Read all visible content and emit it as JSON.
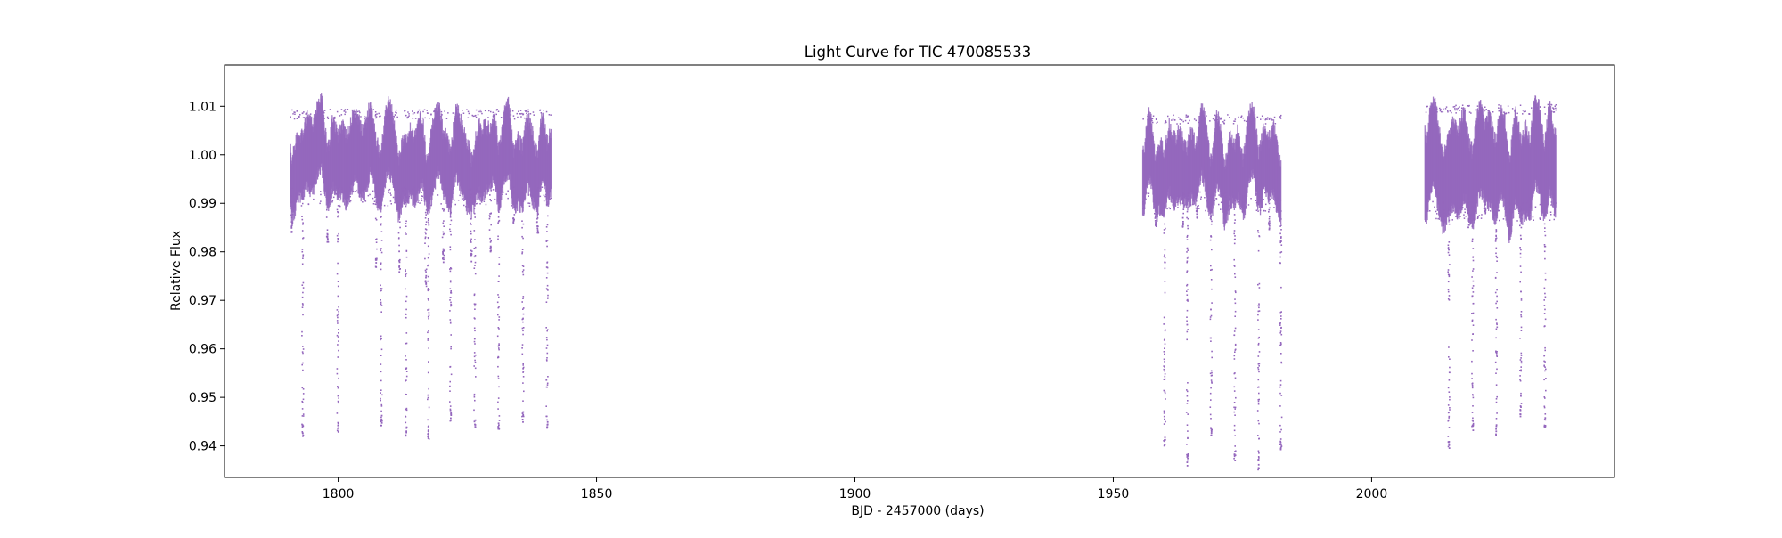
{
  "chart_data": {
    "type": "scatter",
    "title": "Light Curve for TIC 470085533",
    "xlabel": "BJD - 2457000 (days)",
    "ylabel": "Relative Flux",
    "xlim": [
      1778,
      2047
    ],
    "ylim": [
      0.9335,
      1.0185
    ],
    "xticks": [
      1800,
      1850,
      1900,
      1950,
      2000
    ],
    "yticks": [
      0.94,
      0.95,
      0.96,
      0.97,
      0.98,
      0.99,
      1.0,
      1.01
    ],
    "ytick_labels": [
      "0.94",
      "0.95",
      "0.96",
      "0.97",
      "0.98",
      "0.99",
      "1.00",
      "1.01"
    ],
    "grid": false,
    "legend": "none",
    "marker_color": "#9467bd",
    "segments": [
      {
        "x_range": [
          1790.6,
          1841.1
        ],
        "baseline_low": 0.9935,
        "baseline_high": 1.0075,
        "eclipses": [
          {
            "x": 1790.9,
            "depth_min": 0.984
          },
          {
            "x": 1793.0,
            "depth_min": 0.942
          },
          {
            "x": 1797.8,
            "depth_min": 0.982
          },
          {
            "x": 1799.8,
            "depth_min": 0.943
          },
          {
            "x": 1807.2,
            "depth_min": 0.977
          },
          {
            "x": 1808.2,
            "depth_min": 0.944
          },
          {
            "x": 1811.7,
            "depth_min": 0.976
          },
          {
            "x": 1813.0,
            "depth_min": 0.942
          },
          {
            "x": 1816.8,
            "depth_min": 0.973
          },
          {
            "x": 1817.3,
            "depth_min": 0.941
          },
          {
            "x": 1820.2,
            "depth_min": 0.978
          },
          {
            "x": 1821.6,
            "depth_min": 0.945
          },
          {
            "x": 1825.6,
            "depth_min": 0.978
          },
          {
            "x": 1826.3,
            "depth_min": 0.944
          },
          {
            "x": 1829.3,
            "depth_min": 0.98
          },
          {
            "x": 1830.9,
            "depth_min": 0.943
          },
          {
            "x": 1833.8,
            "depth_min": 0.985
          },
          {
            "x": 1835.6,
            "depth_min": 0.945
          },
          {
            "x": 1838.5,
            "depth_min": 0.984
          },
          {
            "x": 1840.3,
            "depth_min": 0.943
          }
        ]
      },
      {
        "x_range": [
          1955.6,
          1982.4
        ],
        "baseline_low": 0.9925,
        "baseline_high": 1.0065,
        "eclipses": [
          {
            "x": 1955.8,
            "depth_min": 0.989
          },
          {
            "x": 1958.0,
            "depth_min": 0.985
          },
          {
            "x": 1959.8,
            "depth_min": 0.94
          },
          {
            "x": 1963.4,
            "depth_min": 0.985
          },
          {
            "x": 1964.2,
            "depth_min": 0.936
          },
          {
            "x": 1966.0,
            "depth_min": 0.987
          },
          {
            "x": 1968.8,
            "depth_min": 0.942
          },
          {
            "x": 1971.4,
            "depth_min": 0.988
          },
          {
            "x": 1973.4,
            "depth_min": 0.937
          },
          {
            "x": 1975.0,
            "depth_min": 0.988
          },
          {
            "x": 1978.0,
            "depth_min": 0.935
          },
          {
            "x": 1980.0,
            "depth_min": 0.984
          },
          {
            "x": 1982.3,
            "depth_min": 0.939
          }
        ]
      },
      {
        "x_range": [
          2010.2,
          2035.6
        ],
        "baseline_low": 0.9905,
        "baseline_high": 1.0085,
        "eclipses": [
          {
            "x": 2010.6,
            "depth_min": 0.991
          },
          {
            "x": 2013.8,
            "depth_min": 0.985
          },
          {
            "x": 2014.8,
            "depth_min": 0.939
          },
          {
            "x": 2018.6,
            "depth_min": 0.985
          },
          {
            "x": 2019.4,
            "depth_min": 0.943
          },
          {
            "x": 2021.8,
            "depth_min": 0.988
          },
          {
            "x": 2024.0,
            "depth_min": 0.942
          },
          {
            "x": 2026.6,
            "depth_min": 0.988
          },
          {
            "x": 2028.7,
            "depth_min": 0.946
          },
          {
            "x": 2030.6,
            "depth_min": 0.989
          },
          {
            "x": 2033.4,
            "depth_min": 0.944
          },
          {
            "x": 2035.2,
            "depth_min": 0.99
          }
        ]
      }
    ]
  }
}
